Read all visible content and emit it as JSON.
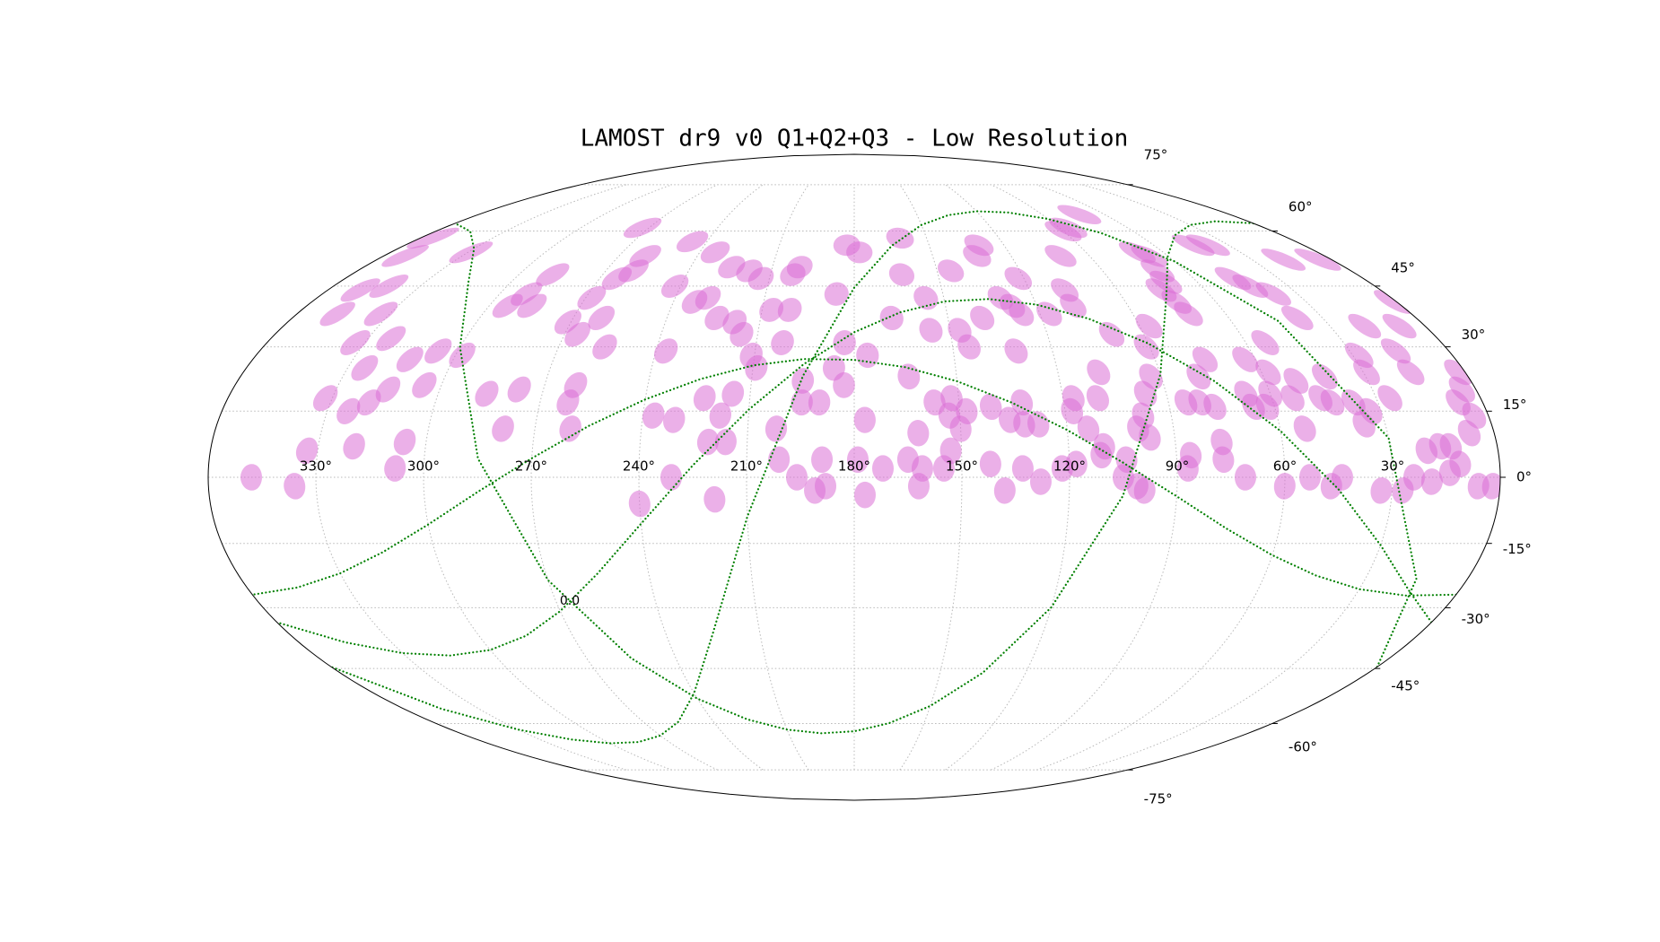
{
  "chart_data": {
    "type": "scatter",
    "projection": "mollweide",
    "title": "LAMOST dr9 v0 Q1+Q2+Q3 - Low Resolution",
    "color": "#da70d6",
    "grid": true,
    "xlim": [
      360,
      0
    ],
    "ylim": [
      -90,
      90
    ],
    "xticks": [
      {
        "value": 330,
        "label": "330°"
      },
      {
        "value": 300,
        "label": "300°"
      },
      {
        "value": 270,
        "label": "270°"
      },
      {
        "value": 240,
        "label": "240°"
      },
      {
        "value": 210,
        "label": "210°"
      },
      {
        "value": 180,
        "label": "180°"
      },
      {
        "value": 150,
        "label": "150°"
      },
      {
        "value": 120,
        "label": "120°"
      },
      {
        "value": 90,
        "label": "90°"
      },
      {
        "value": 60,
        "label": "60°"
      },
      {
        "value": 30,
        "label": "30°"
      }
    ],
    "yticks": [
      {
        "value": 75,
        "label": "75°"
      },
      {
        "value": 60,
        "label": "60°"
      },
      {
        "value": 45,
        "label": "45°"
      },
      {
        "value": 30,
        "label": "30°"
      },
      {
        "value": 15,
        "label": "15°"
      },
      {
        "value": 0,
        "label": "0°"
      },
      {
        "value": -15,
        "label": "-15°"
      },
      {
        "value": -30,
        "label": "-30°"
      },
      {
        "value": -45,
        "label": "-45°"
      },
      {
        "value": -60,
        "label": "-60°"
      },
      {
        "value": -75,
        "label": "-75°"
      }
    ],
    "x": [
      348,
      336,
      333,
      320,
      308,
      306,
      279,
      260,
      240,
      231,
      237,
      231,
      221,
      216,
      219,
      223,
      218,
      215,
      202,
      201,
      196,
      191,
      189,
      188,
      179,
      177,
      177,
      172,
      165,
      162,
      162,
      161,
      155,
      153,
      150,
      153,
      157,
      152,
      148,
      142,
      141,
      138,
      136,
      132,
      132,
      133,
      128,
      128,
      122,
      118,
      114,
      118,
      117,
      110,
      111,
      110,
      105,
      104,
      101,
      99,
      100,
      97,
      98,
      96,
      93,
      87,
      86,
      77,
      77,
      71,
      60,
      53,
      53,
      47,
      44,
      36,
      33,
      27,
      24,
      20,
      19,
      16,
      13,
      11,
      7,
      6,
      2,
      14,
      332,
      324,
      319,
      315,
      325,
      313,
      305,
      306,
      298,
      286,
      277,
      262,
      261,
      256,
      237,
      209,
      211,
      202,
      195,
      195,
      190,
      186,
      183,
      183,
      176,
      164,
      156,
      147,
      145,
      131,
      108,
      100,
      91,
      87,
      85,
      81,
      79,
      75,
      77,
      67,
      66,
      62,
      63,
      54,
      58,
      60,
      54,
      51,
      46,
      42,
      43,
      37,
      33,
      26,
      29,
      28,
      16,
      16,
      2,
      4,
      7,
      4,
      347,
      333,
      333,
      323,
      349,
      341,
      352,
      355,
      329,
      294,
      286,
      291,
      288,
      271,
      266,
      268,
      261,
      264,
      260,
      260,
      273,
      242,
      233,
      246,
      229,
      234,
      224,
      225,
      218,
      215,
      218,
      213,
      207,
      201,
      202,
      200,
      186,
      183,
      178,
      168,
      161,
      163,
      156,
      145,
      133,
      130,
      139,
      131,
      128,
      122,
      126,
      117,
      101,
      90,
      108,
      108,
      72,
      70,
      67,
      75,
      73,
      72,
      44,
      38,
      46,
      43,
      38,
      38,
      18,
      5,
      19,
      8,
      1,
      70,
      71,
      86
    ],
    "values": [
      0,
      -2,
      6,
      7,
      2,
      8,
      11,
      11,
      -6,
      0,
      14,
      13,
      8,
      8,
      -5,
      18,
      14,
      19,
      11,
      4,
      0,
      -3,
      4,
      -2,
      4,
      -4,
      13,
      2,
      4,
      10,
      -2,
      2,
      2,
      6,
      11,
      14,
      17,
      18,
      15,
      3,
      16,
      -3,
      13,
      17,
      12,
      2,
      -1,
      12,
      2,
      3,
      11,
      15,
      18,
      18,
      5,
      7,
      0,
      4,
      -2,
      -3,
      11,
      9,
      14,
      19,
      23,
      2,
      5,
      4,
      8,
      0,
      -2,
      11,
      0,
      -2,
      0,
      12,
      -3,
      -3,
      0,
      6,
      -1,
      7,
      7,
      3,
      10,
      -2,
      -2,
      1,
      18,
      15,
      17,
      20,
      25,
      27,
      21,
      29,
      28,
      19,
      20,
      17,
      21,
      30,
      29,
      25,
      28,
      31,
      17,
      22,
      17,
      25,
      21,
      31,
      28,
      23,
      34,
      34,
      30,
      29,
      24,
      33,
      30,
      35,
      17,
      17,
      23,
      27,
      16,
      19,
      16,
      16,
      27,
      31,
      24,
      19,
      18,
      22,
      18,
      23,
      17,
      17,
      15,
      18,
      24,
      28,
      29,
      24,
      24,
      20,
      17,
      14,
      38,
      31,
      38,
      32,
      44,
      45,
      53,
      58,
      54,
      40,
      40,
      43,
      48,
      36,
      33,
      42,
      37,
      47,
      49,
      53,
      61,
      45,
      41,
      57,
      42,
      54,
      37,
      50,
      36,
      33,
      49,
      47,
      39,
      39,
      48,
      50,
      43,
      56,
      54,
      37,
      58,
      48,
      42,
      49,
      53,
      56,
      37,
      42,
      40,
      47,
      38,
      38,
      53,
      60,
      44,
      40,
      65,
      54,
      53,
      44,
      41,
      38,
      56,
      56,
      47,
      45,
      43,
      37,
      52,
      52,
      35,
      35,
      41,
      49,
      46,
      61
    ],
    "curve_x": [
      0,
      15,
      30,
      45,
      60,
      75,
      90,
      105,
      120,
      135,
      150,
      165,
      180,
      195,
      210,
      225,
      240,
      255,
      270,
      285,
      300,
      315,
      330,
      345,
      360
    ],
    "curves": [
      {
        "color": "green",
        "values": [
          62.3,
          62.9,
          61.8,
          58.8,
          53.0,
          42.4,
          23.5,
          -4.2,
          -29.9,
          -46.1,
          -55.0,
          -59.9,
          -62.3,
          -62.9,
          -61.8,
          -58.8,
          -53.0,
          -42.4,
          -23.5,
          4.2,
          29.9,
          46.1,
          55.0,
          59.9,
          62.3
        ]
      },
      {
        "color": "green",
        "values": [
          -33.5,
          -25.9,
          -15.4,
          -2.7,
          10.5,
          22.0,
          30.8,
          36.8,
          40.3,
          41.7,
          41.1,
          38.4,
          33.5,
          25.9,
          15.4,
          2.7,
          -10.5,
          -22.0,
          -30.8,
          -36.8,
          -40.3,
          -41.7,
          -41.1,
          -38.4,
          -33.5
        ]
      },
      {
        "color": "green",
        "values": [
          -26.9,
          -27.1,
          -25.6,
          -22.4,
          -17.7,
          -11.6,
          -4.3,
          3.3,
          10.7,
          17.0,
          21.9,
          25.2,
          26.9,
          27.1,
          25.6,
          22.4,
          17.7,
          11.6,
          4.3,
          -3.3,
          -10.7,
          -17.0,
          -21.9,
          -25.2,
          -26.9
        ]
      },
      {
        "color": "green",
        "values": [
          -44.6,
          -23.2,
          8.9,
          36.2,
          51.5,
          59.5,
          63.6,
          65.6,
          66.0,
          64.8,
          61.8,
          55.8,
          44.6,
          23.2,
          -8.9,
          -36.2,
          -51.5,
          -59.5,
          -63.6,
          -65.6,
          -66.0,
          -64.8,
          -61.8,
          -55.8,
          -44.6
        ]
      }
    ],
    "annotations": [
      {
        "text": "0.0",
        "color": "green"
      }
    ]
  }
}
